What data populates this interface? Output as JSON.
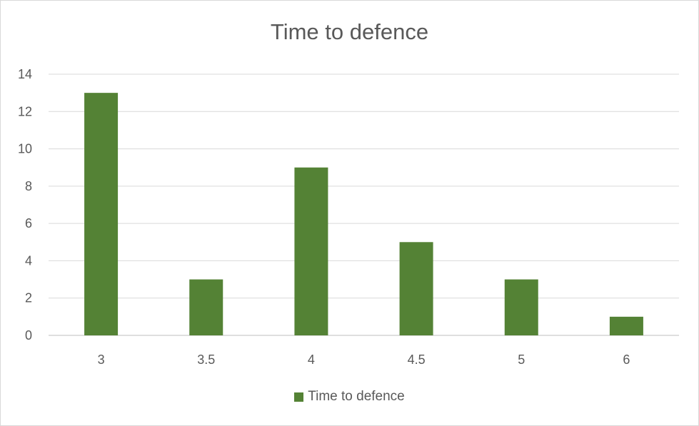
{
  "chart_data": {
    "type": "bar",
    "title": "Time to defence",
    "xlabel": "",
    "ylabel": "",
    "categories": [
      "3",
      "3.5",
      "4",
      "4.5",
      "5",
      "6"
    ],
    "series": [
      {
        "name": "Time to defence",
        "values": [
          13,
          3,
          9,
          5,
          3,
          1
        ]
      }
    ],
    "ylim": [
      0,
      14
    ],
    "yticks": [
      0,
      2,
      4,
      6,
      8,
      10,
      12,
      14
    ],
    "grid": true,
    "legend_position": "bottom",
    "colors": {
      "bar": "#548235",
      "grid": "#d9d9d9",
      "axis": "#bfbfbf",
      "text": "#595959"
    }
  }
}
